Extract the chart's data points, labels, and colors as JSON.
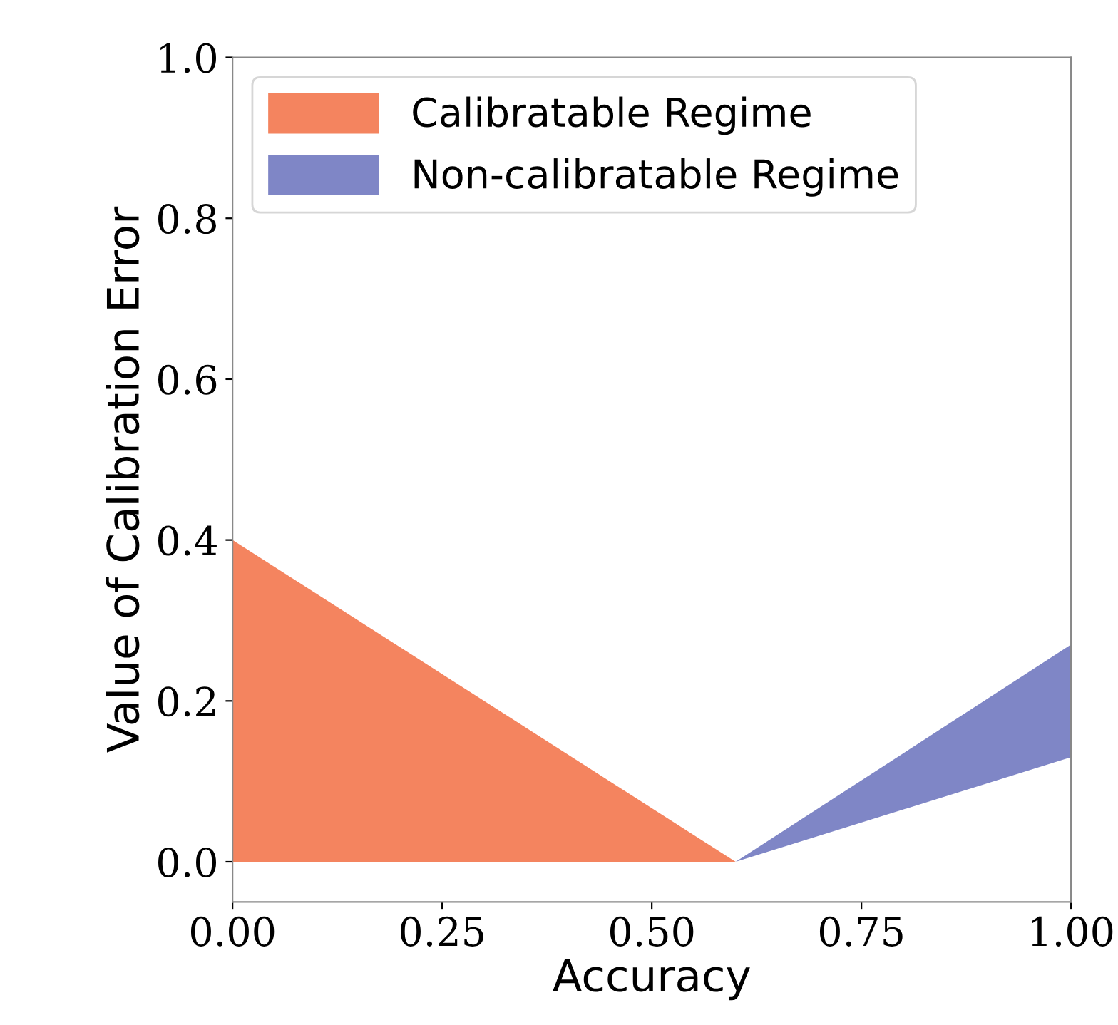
{
  "chart_data": {
    "type": "area",
    "xlabel": "Accuracy",
    "ylabel": "Value of Calibration Error",
    "series": [
      {
        "name": "Calibratable Regime",
        "color": "#f4845f",
        "x": [
          0,
          0.6
        ],
        "values": [
          0.4,
          0
        ]
      },
      {
        "name": "Non-calibratable Regime",
        "color": "#7f86c6",
        "x": [
          0.6,
          1.0
        ],
        "type": "line",
        "values": [
          null,
          null
        ],
        "lower": [
          0,
          0.13
        ],
        "upper": [
          0,
          0.27
        ]
      }
    ],
    "xlim": [
      0,
      1.0
    ],
    "xticks": [
      {
        "value": 0,
        "label": "0.00"
      },
      {
        "value": 0.25,
        "label": "0.25"
      },
      {
        "value": 0.5,
        "label": "0.50"
      },
      {
        "value": 0.75,
        "label": "0.75"
      },
      {
        "value": 1.0,
        "label": "1.00"
      }
    ],
    "ylim": [
      -0.05,
      1.0
    ],
    "yticks": [
      {
        "value": 0,
        "label": "0.0"
      },
      {
        "value": 0.2,
        "label": "0.2"
      },
      {
        "value": 0.4,
        "label": "0.4"
      },
      {
        "value": 0.6,
        "label": "0.6"
      },
      {
        "value": 0.8,
        "label": "0.8"
      },
      {
        "value": 1.0,
        "label": "1.0"
      }
    ],
    "legend": "top left",
    "grid": false
  }
}
